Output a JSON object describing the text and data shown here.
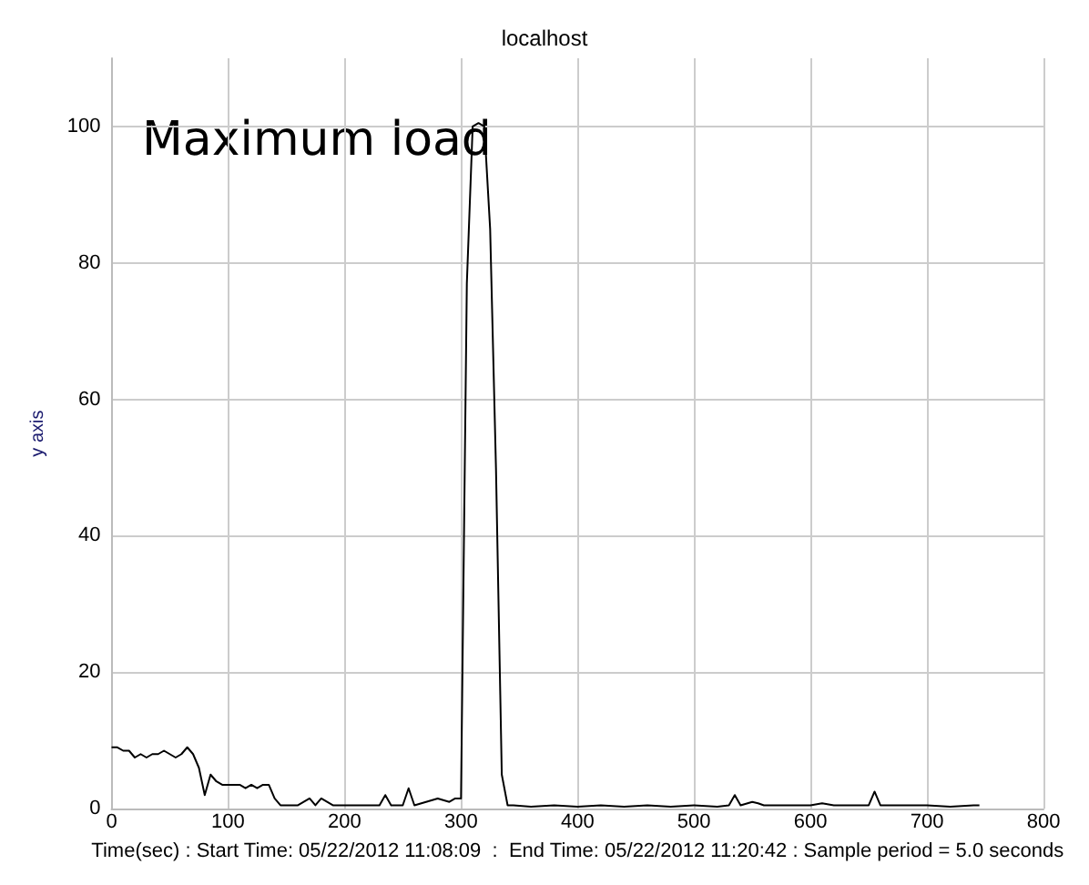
{
  "chart_data": {
    "type": "line",
    "title": "localhost",
    "xlabel": "Time(sec) : Start Time: 05/22/2012 11:08:09  :  End Time: 05/22/2012 11:20:42 : Sample period = 5.0 seconds",
    "ylabel": "y axis",
    "x": [
      0,
      5,
      10,
      15,
      20,
      25,
      30,
      35,
      40,
      45,
      50,
      55,
      60,
      65,
      70,
      75,
      80,
      85,
      90,
      95,
      100,
      105,
      110,
      115,
      120,
      125,
      130,
      135,
      140,
      145,
      150,
      160,
      170,
      175,
      180,
      185,
      190,
      200,
      210,
      220,
      230,
      235,
      240,
      250,
      255,
      260,
      270,
      280,
      290,
      295,
      300,
      305,
      310,
      315,
      320,
      325,
      330,
      335,
      340,
      345,
      360,
      380,
      400,
      420,
      440,
      460,
      480,
      500,
      520,
      530,
      535,
      540,
      550,
      555,
      560,
      580,
      600,
      610,
      620,
      640,
      650,
      655,
      660,
      680,
      700,
      720,
      740,
      745
    ],
    "series": [
      {
        "color": "#000000",
        "values": [
          9,
          9,
          8.5,
          8.5,
          7.5,
          8,
          7.5,
          8,
          8,
          8.5,
          8,
          7.5,
          8,
          9,
          8,
          6,
          2,
          5,
          4,
          3.5,
          3.5,
          3.5,
          3.5,
          3,
          3.5,
          3,
          3.5,
          3.5,
          1.5,
          0.5,
          0.5,
          0.5,
          1.5,
          0.5,
          1.5,
          1,
          0.5,
          0.5,
          0.5,
          0.5,
          0.5,
          2,
          0.5,
          0.5,
          3,
          0.5,
          1,
          1.5,
          1,
          1.5,
          1.5,
          77,
          100,
          100.5,
          100,
          85,
          50,
          5,
          0.5,
          0.5,
          0.3,
          0.5,
          0.3,
          0.5,
          0.3,
          0.5,
          0.3,
          0.5,
          0.3,
          0.5,
          2,
          0.5,
          1,
          0.8,
          0.5,
          0.5,
          0.5,
          0.8,
          0.5,
          0.5,
          0.5,
          2.5,
          0.5,
          0.5,
          0.5,
          0.3,
          0.5,
          0.5
        ]
      }
    ],
    "xlim": [
      0,
      800
    ],
    "xticks": [
      0,
      100,
      200,
      300,
      400,
      500,
      600,
      700,
      800
    ],
    "ylim": [
      0,
      110
    ],
    "yticks": [
      0,
      20,
      40,
      60,
      80,
      100
    ],
    "grid": true,
    "marker": "none",
    "line_style": "solid",
    "annotations": [
      "Maximum load"
    ]
  }
}
